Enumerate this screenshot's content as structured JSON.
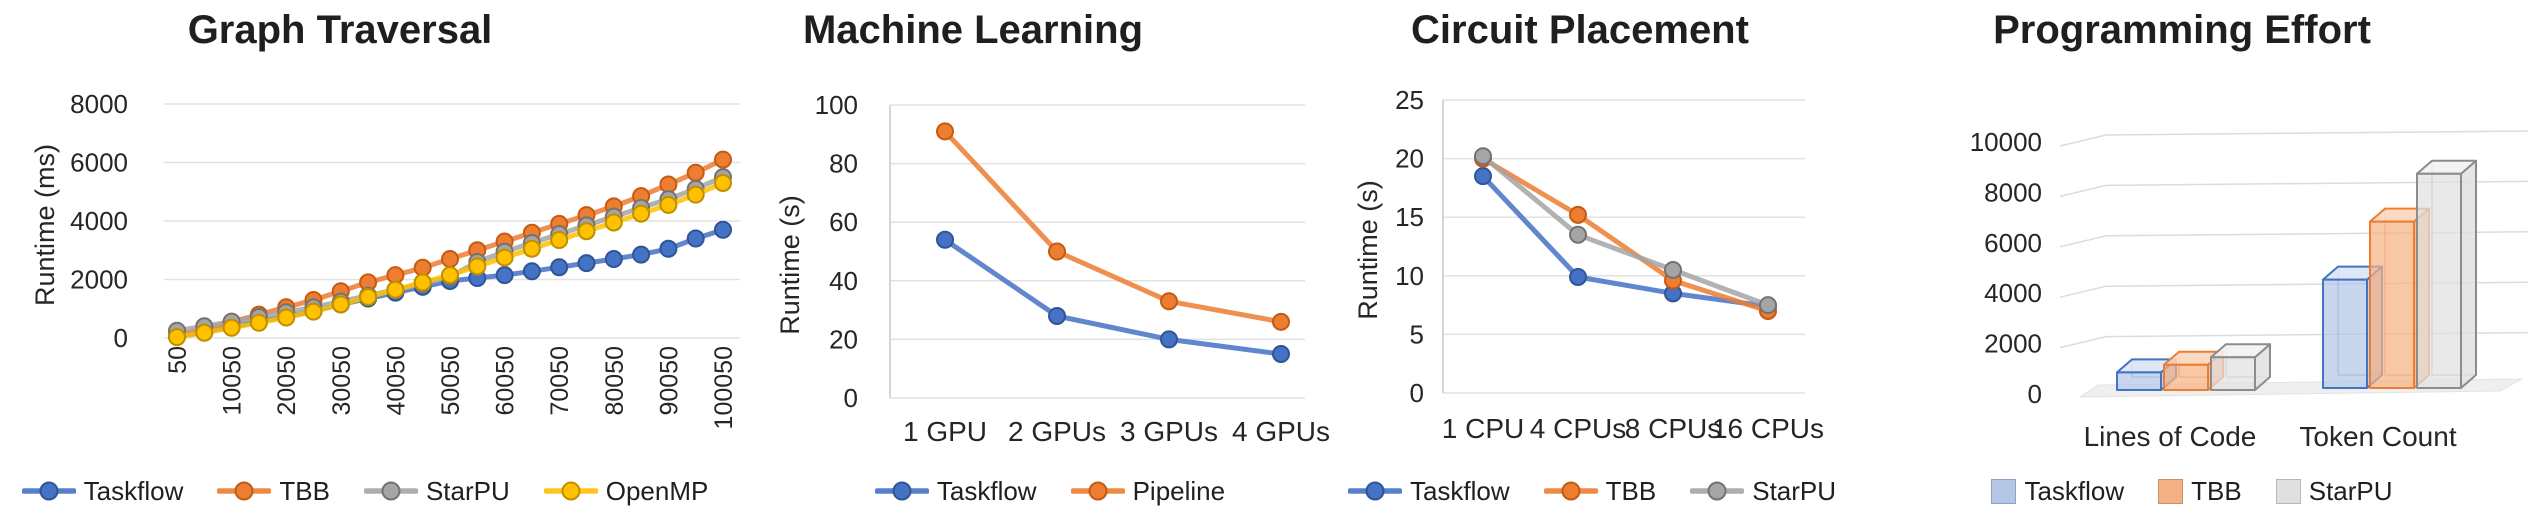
{
  "figure": {
    "background": "#ffffff",
    "grid_color": "#e2e2e2",
    "text_color": "#262626"
  },
  "chart_data": [
    {
      "type": "line",
      "title": "Graph Traversal",
      "xlabel": "",
      "ylabel": "Runtime (ms)",
      "ylim": [
        0,
        8000
      ],
      "yticks": [
        "0",
        "2000",
        "4000",
        "6000",
        "8000"
      ],
      "x": [
        50,
        5050,
        10050,
        15050,
        20050,
        25050,
        30050,
        35050,
        40050,
        45050,
        50050,
        55050,
        60050,
        65050,
        70050,
        75050,
        80050,
        85050,
        90050,
        95050,
        100050
      ],
      "xtick_labels": [
        "50",
        "10050",
        "20050",
        "30050",
        "40050",
        "50050",
        "60050",
        "70050",
        "80050",
        "90050",
        "100050"
      ],
      "xtick_rotation": 90,
      "grid": true,
      "legend_position": "bottom",
      "series": [
        {
          "name": "Taskflow",
          "color": "#4472C4",
          "edge": "#2F5597",
          "values": [
            50,
            200,
            380,
            560,
            740,
            920,
            1150,
            1350,
            1550,
            1750,
            1950,
            2050,
            2150,
            2280,
            2420,
            2560,
            2700,
            2850,
            3050,
            3400,
            3700
          ]
        },
        {
          "name": "TBB",
          "color": "#ED7D31",
          "edge": "#C55A11",
          "values": [
            100,
            300,
            550,
            800,
            1050,
            1300,
            1600,
            1900,
            2150,
            2400,
            2700,
            3000,
            3300,
            3600,
            3900,
            4200,
            4500,
            4850,
            5250,
            5650,
            6100
          ]
        },
        {
          "name": "StarPU",
          "color": "#A5A5A5",
          "edge": "#767171",
          "values": [
            250,
            400,
            560,
            720,
            880,
            1050,
            1250,
            1450,
            1650,
            1850,
            2100,
            2600,
            2950,
            3250,
            3550,
            3850,
            4150,
            4450,
            4750,
            5100,
            5500
          ]
        },
        {
          "name": "OpenMP",
          "color": "#FFC000",
          "edge": "#BF8F00",
          "values": [
            30,
            180,
            350,
            520,
            700,
            900,
            1150,
            1400,
            1650,
            1900,
            2150,
            2450,
            2750,
            3050,
            3350,
            3650,
            3950,
            4250,
            4550,
            4900,
            5300
          ]
        }
      ]
    },
    {
      "type": "line",
      "title": "Machine Learning",
      "xlabel": "",
      "ylabel": "Runtime (s)",
      "ylim": [
        0,
        100
      ],
      "yticks": [
        "0",
        "20",
        "40",
        "60",
        "80",
        "100"
      ],
      "categories": [
        "1 GPU",
        "2 GPUs",
        "3 GPUs",
        "4 GPUs"
      ],
      "grid": true,
      "legend_position": "bottom",
      "series": [
        {
          "name": "Taskflow",
          "color": "#4472C4",
          "edge": "#2F5597",
          "values": [
            54,
            28,
            20,
            15
          ]
        },
        {
          "name": "Pipeline",
          "color": "#ED7D31",
          "edge": "#C55A11",
          "values": [
            91,
            50,
            33,
            26
          ]
        }
      ]
    },
    {
      "type": "line",
      "title": "Circuit Placement",
      "xlabel": "",
      "ylabel": "Runtime (s)",
      "ylim": [
        0,
        25
      ],
      "yticks": [
        "0",
        "5",
        "10",
        "15",
        "20",
        "25"
      ],
      "categories": [
        "1 CPU",
        "4 CPUs",
        "8 CPUs",
        "16 CPUs"
      ],
      "grid": true,
      "legend_position": "bottom",
      "series": [
        {
          "name": "Taskflow",
          "color": "#4472C4",
          "edge": "#2F5597",
          "values": [
            18.5,
            9.9,
            8.5,
            7.4
          ]
        },
        {
          "name": "TBB",
          "color": "#ED7D31",
          "edge": "#C55A11",
          "values": [
            20,
            15.2,
            9.6,
            7.0
          ]
        },
        {
          "name": "StarPU",
          "color": "#A5A5A5",
          "edge": "#767171",
          "values": [
            20.2,
            13.5,
            10.5,
            7.5
          ]
        }
      ]
    },
    {
      "type": "bar3d",
      "title": "Programming Effort",
      "xlabel": "",
      "ylabel": "",
      "ylim": [
        0,
        10000
      ],
      "yticks": [
        "0",
        "2000",
        "4000",
        "6000",
        "8000",
        "10000"
      ],
      "categories": [
        "Lines of Code",
        "Token Count"
      ],
      "grid": true,
      "legend_position": "bottom",
      "series": [
        {
          "name": "Taskflow",
          "color": "#B4C7E7",
          "top": "#D9E4F4",
          "edge": "#4472C4",
          "values": [
            700,
            4300
          ]
        },
        {
          "name": "TBB",
          "color": "#F5B183",
          "top": "#FBD6BE",
          "edge": "#ED7D31",
          "values": [
            1000,
            6600
          ]
        },
        {
          "name": "StarPU",
          "color": "#E0E0E0",
          "top": "#F2F2F2",
          "edge": "#8C8C8C",
          "values": [
            1300,
            8500
          ]
        }
      ]
    }
  ]
}
